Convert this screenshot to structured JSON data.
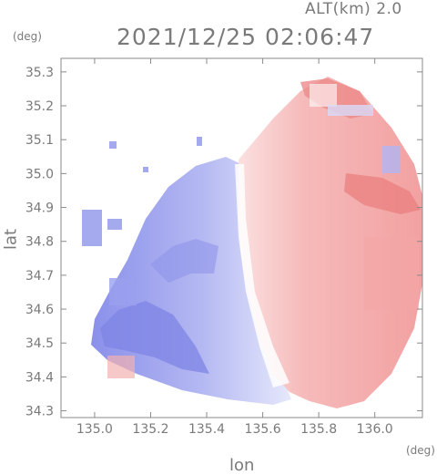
{
  "header": {
    "altitude_label": "ALT(km) 2.0",
    "timestamp": "2021/12/25 02:06:47"
  },
  "axes": {
    "x_label": "lon",
    "y_label": "lat",
    "x_unit": "(deg)",
    "y_unit": "(deg)",
    "x_ticks": [
      "135.0",
      "135.2",
      "135.4",
      "135.6",
      "135.8",
      "136.0"
    ],
    "y_ticks": [
      "35.3",
      "35.2",
      "35.1",
      "35.0",
      "34.9",
      "34.8",
      "34.7",
      "34.6",
      "34.5",
      "34.4",
      "34.3"
    ],
    "x_range": [
      134.88,
      136.17
    ],
    "y_range": [
      34.28,
      35.34
    ]
  },
  "colors": {
    "frame": "#8a8a8a",
    "approaching": "#7f86e6",
    "receding": "#f08a8a",
    "neutral": "#ffffff"
  }
}
